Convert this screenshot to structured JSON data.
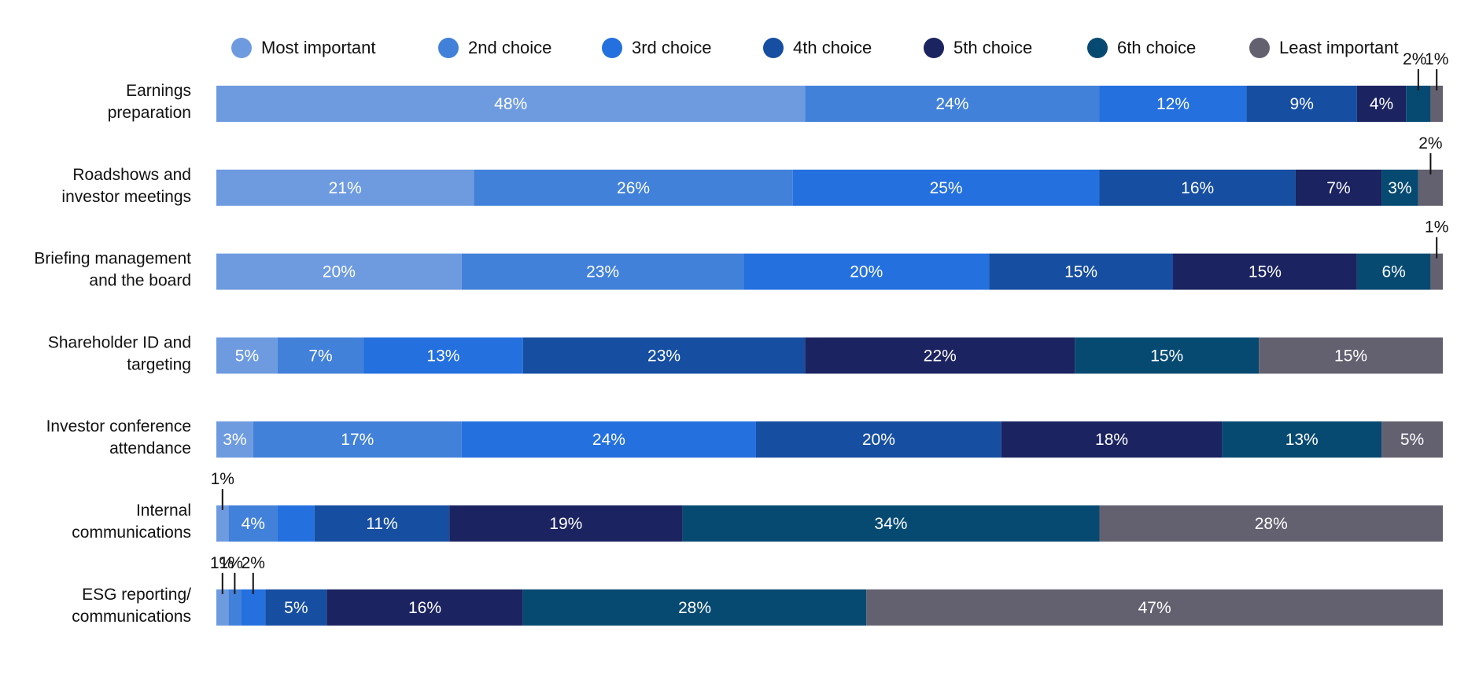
{
  "chart_data": {
    "type": "bar",
    "orientation": "horizontal",
    "stacked": true,
    "normalized": true,
    "unit": "%",
    "xlim": [
      0,
      100
    ],
    "legend_position": "top",
    "grid": false,
    "categories": [
      [
        "Earnings",
        "preparation"
      ],
      [
        "Roadshows and",
        "investor meetings"
      ],
      [
        "Briefing management",
        "and the board"
      ],
      [
        "Shareholder ID and",
        "targeting"
      ],
      [
        "Investor conference",
        "attendance"
      ],
      [
        "Internal",
        "communications"
      ],
      [
        "ESG reporting/",
        "communications"
      ]
    ],
    "series": [
      {
        "name": "Most important",
        "color": "#6e9be0",
        "values": [
          48,
          21,
          20,
          5,
          3,
          1,
          1
        ]
      },
      {
        "name": "2nd choice",
        "color": "#4281d9",
        "values": [
          24,
          26,
          23,
          7,
          17,
          4,
          1
        ]
      },
      {
        "name": "3rd choice",
        "color": "#2470df",
        "values": [
          12,
          25,
          20,
          13,
          24,
          3,
          2
        ]
      },
      {
        "name": "4th choice",
        "color": "#164ea1",
        "values": [
          9,
          16,
          15,
          23,
          20,
          11,
          5
        ]
      },
      {
        "name": "5th choice",
        "color": "#1b2360",
        "values": [
          4,
          7,
          15,
          22,
          18,
          19,
          16
        ]
      },
      {
        "name": "6th choice",
        "color": "#064a72",
        "values": [
          2,
          3,
          6,
          15,
          13,
          34,
          28
        ]
      },
      {
        "name": "Least important",
        "color": "#636170",
        "values": [
          1,
          2,
          1,
          15,
          5,
          28,
          47
        ]
      }
    ],
    "labels": [
      [
        "48%",
        "24%",
        "12%",
        "9%",
        "4%",
        "2%",
        "1%"
      ],
      [
        "21%",
        "26%",
        "25%",
        "16%",
        "7%",
        "3%",
        "2%"
      ],
      [
        "20%",
        "23%",
        "20%",
        "15%",
        "15%",
        "6%",
        "1%"
      ],
      [
        "5%",
        "7%",
        "13%",
        "23%",
        "22%",
        "15%",
        "15%"
      ],
      [
        "3%",
        "17%",
        "24%",
        "20%",
        "18%",
        "13%",
        "5%"
      ],
      [
        "1%",
        "4%",
        "",
        "11%",
        "19%",
        "34%",
        "28%"
      ],
      [
        "1%",
        "1%",
        "2%",
        "5%",
        "16%",
        "28%",
        "47%"
      ]
    ]
  }
}
